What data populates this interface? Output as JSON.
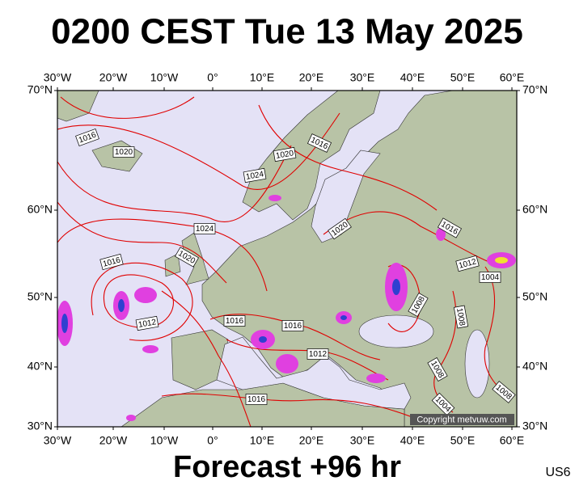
{
  "header": {
    "title": "0200 CEST Tue 13 May 2025"
  },
  "axes": {
    "longitudes": [
      "30°W",
      "20°W",
      "10°W",
      "0°",
      "10°E",
      "20°E",
      "30°E",
      "40°E",
      "50°E",
      "60°E"
    ],
    "latitudes": [
      "70°N",
      "60°N",
      "50°N",
      "40°N",
      "30°N"
    ]
  },
  "isobar_labels": [
    "1016",
    "1020",
    "1024",
    "1020",
    "1016",
    "1024",
    "1020",
    "1016",
    "1012",
    "1016",
    "1016",
    "1012",
    "1020",
    "1016",
    "1012",
    "1004",
    "1008",
    "1008",
    "1008",
    "1016",
    "1004",
    "1008"
  ],
  "copyright": "Copyright metvuw.com",
  "footer": {
    "forecast": "Forecast +96 hr",
    "region": "US6"
  }
}
